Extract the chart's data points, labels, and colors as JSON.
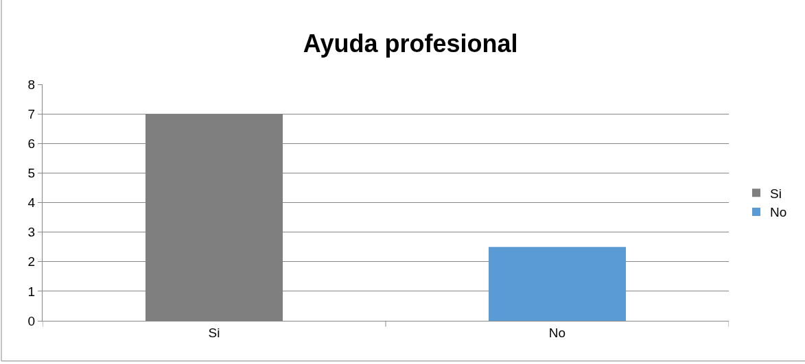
{
  "chart_data": {
    "type": "bar",
    "title": "Ayuda profesional",
    "categories": [
      "Si",
      "No"
    ],
    "series": [
      {
        "name": "Si",
        "color": "#7f7f7f",
        "values": [
          7,
          null
        ]
      },
      {
        "name": "No",
        "color": "#5b9bd5",
        "values": [
          null,
          2.5
        ]
      }
    ],
    "ylim": [
      0,
      8
    ],
    "yticks": [
      0,
      1,
      2,
      3,
      4,
      5,
      6,
      7,
      8
    ],
    "grid": "y",
    "legend": "right"
  }
}
